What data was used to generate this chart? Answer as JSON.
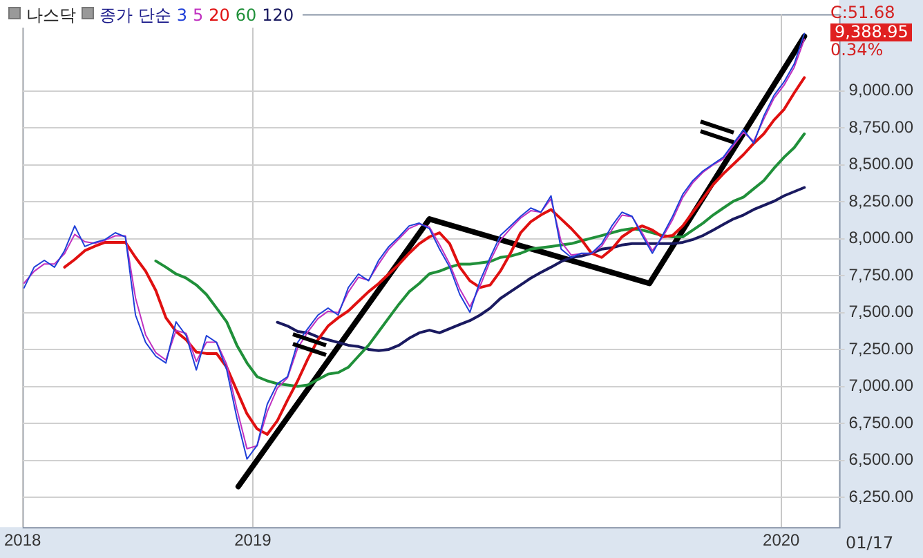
{
  "chart_data": {
    "type": "line",
    "title": "나스닥",
    "legend_title": "종가 단순",
    "x": [
      "2018-07-27",
      "2018-08-03",
      "2018-08-10",
      "2018-08-17",
      "2018-08-24",
      "2018-08-31",
      "2018-09-07",
      "2018-09-14",
      "2018-09-21",
      "2018-09-28",
      "2018-10-05",
      "2018-10-12",
      "2018-10-19",
      "2018-10-26",
      "2018-11-02",
      "2018-11-09",
      "2018-11-16",
      "2018-11-23",
      "2018-11-30",
      "2018-12-07",
      "2018-12-14",
      "2018-12-21",
      "2018-12-28",
      "2019-01-04",
      "2019-01-11",
      "2019-01-18",
      "2019-01-25",
      "2019-02-01",
      "2019-02-08",
      "2019-02-15",
      "2019-02-22",
      "2019-03-01",
      "2019-03-08",
      "2019-03-15",
      "2019-03-22",
      "2019-03-29",
      "2019-04-05",
      "2019-04-12",
      "2019-04-19",
      "2019-04-26",
      "2019-05-03",
      "2019-05-10",
      "2019-05-17",
      "2019-05-24",
      "2019-05-31",
      "2019-06-07",
      "2019-06-14",
      "2019-06-21",
      "2019-06-28",
      "2019-07-05",
      "2019-07-12",
      "2019-07-19",
      "2019-07-26",
      "2019-08-02",
      "2019-08-09",
      "2019-08-16",
      "2019-08-23",
      "2019-08-30",
      "2019-09-06",
      "2019-09-13",
      "2019-09-20",
      "2019-09-27",
      "2019-10-04",
      "2019-10-11",
      "2019-10-18",
      "2019-10-25",
      "2019-11-01",
      "2019-11-08",
      "2019-11-15",
      "2019-11-22",
      "2019-11-29",
      "2019-12-06",
      "2019-12-13",
      "2019-12-20",
      "2019-12-27",
      "2020-01-03",
      "2020-01-10",
      "2020-01-17"
    ],
    "series": [
      {
        "name": "3",
        "color": "#1f3fd8",
        "values": [
          7668,
          7808,
          7854,
          7808,
          7920,
          8087,
          7948,
          7976,
          7995,
          8041,
          8013,
          7484,
          7299,
          7206,
          7160,
          7438,
          7345,
          7113,
          7345,
          7299,
          7113,
          6789,
          6510,
          6603,
          6881,
          7020,
          7067,
          7299,
          7392,
          7484,
          7531,
          7484,
          7670,
          7762,
          7716,
          7855,
          7948,
          8013,
          8087,
          8106,
          8069,
          7930,
          7808,
          7623,
          7503,
          7716,
          7874,
          8022,
          8087,
          8152,
          8208,
          8180,
          8291,
          7930,
          7874,
          7902,
          7902,
          7967,
          8087,
          8180,
          8152,
          8022,
          7902,
          8022,
          8152,
          8301,
          8394,
          8459,
          8505,
          8552,
          8645,
          8738,
          8645,
          8831,
          8970,
          9062,
          9183,
          9389
        ]
      },
      {
        "name": "5",
        "color": "#c030c0",
        "values": [
          7700,
          7780,
          7830,
          7830,
          7900,
          8030,
          7980,
          7970,
          7990,
          8020,
          8020,
          7600,
          7350,
          7230,
          7180,
          7380,
          7360,
          7170,
          7300,
          7300,
          7150,
          6850,
          6580,
          6600,
          6830,
          6990,
          7060,
          7260,
          7370,
          7460,
          7510,
          7500,
          7640,
          7740,
          7720,
          7830,
          7930,
          8000,
          8070,
          8100,
          8080,
          7960,
          7830,
          7660,
          7540,
          7680,
          7850,
          7990,
          8070,
          8140,
          8190,
          8180,
          8270,
          7980,
          7890,
          7900,
          7900,
          7950,
          8060,
          8160,
          8150,
          8040,
          7920,
          8010,
          8130,
          8280,
          8380,
          8450,
          8500,
          8540,
          8630,
          8720,
          8660,
          8810,
          8950,
          9040,
          9160,
          9350
        ]
      },
      {
        "name": "20",
        "color": "#e01010",
        "values": [
          null,
          null,
          null,
          null,
          7808,
          7860,
          7920,
          7950,
          7976,
          7976,
          7976,
          7874,
          7781,
          7651,
          7466,
          7373,
          7317,
          7234,
          7224,
          7224,
          7131,
          6973,
          6816,
          6714,
          6677,
          6770,
          6909,
          7039,
          7187,
          7317,
          7410,
          7466,
          7512,
          7577,
          7642,
          7698,
          7763,
          7828,
          7902,
          7967,
          8013,
          8041,
          7967,
          7808,
          7716,
          7670,
          7688,
          7781,
          7902,
          8041,
          8115,
          8161,
          8198,
          8134,
          8069,
          7995,
          7902,
          7874,
          7930,
          8013,
          8059,
          8087,
          8059,
          8013,
          8022,
          8087,
          8180,
          8273,
          8366,
          8440,
          8505,
          8570,
          8645,
          8710,
          8803,
          8876,
          8987,
          9090
        ]
      },
      {
        "name": "60",
        "color": "#20903a",
        "values": [
          null,
          null,
          null,
          null,
          null,
          null,
          null,
          null,
          null,
          null,
          null,
          null,
          null,
          7850,
          7808,
          7762,
          7734,
          7688,
          7623,
          7531,
          7438,
          7280,
          7160,
          7067,
          7039,
          7020,
          7011,
          7002,
          7011,
          7048,
          7085,
          7095,
          7131,
          7206,
          7280,
          7373,
          7466,
          7558,
          7642,
          7698,
          7763,
          7781,
          7808,
          7828,
          7828,
          7837,
          7846,
          7874,
          7883,
          7902,
          7930,
          7939,
          7948,
          7958,
          7967,
          7986,
          8004,
          8022,
          8041,
          8059,
          8069,
          8059,
          8041,
          8022,
          8013,
          8013,
          8059,
          8106,
          8161,
          8208,
          8254,
          8282,
          8338,
          8394,
          8477,
          8552,
          8617,
          8710
        ]
      },
      {
        "name": "120",
        "color": "#1a1a60",
        "values": [
          null,
          null,
          null,
          null,
          null,
          null,
          null,
          null,
          null,
          null,
          null,
          null,
          null,
          null,
          null,
          null,
          null,
          null,
          null,
          null,
          null,
          null,
          null,
          null,
          null,
          7435,
          7410,
          7373,
          7364,
          7336,
          7317,
          7299,
          7280,
          7271,
          7252,
          7243,
          7252,
          7280,
          7327,
          7364,
          7382,
          7364,
          7392,
          7420,
          7447,
          7484,
          7531,
          7596,
          7642,
          7688,
          7734,
          7772,
          7808,
          7846,
          7874,
          7883,
          7902,
          7930,
          7939,
          7958,
          7967,
          7967,
          7967,
          7967,
          7967,
          7976,
          7995,
          8022,
          8059,
          8097,
          8134,
          8161,
          8198,
          8226,
          8254,
          8291,
          8319,
          8347
        ]
      },
      {
        "type": "line",
        "color": "#000000",
        "x": [
          "2018-12-22",
          "2019-05-03",
          "2019-10-02",
          "2020-01-17"
        ],
        "values": [
          6324,
          8134,
          7698,
          9370
        ]
      }
    ],
    "xlim": [
      "2018-07-26",
      "2020-02-10"
    ],
    "xticks": [
      {
        "value": "2018-07-26",
        "label": "2018"
      },
      {
        "value": "2019-01-01",
        "label": "2019"
      },
      {
        "value": "2020-01-01",
        "label": "2020"
      }
    ],
    "ylim": [
      6050,
      9520
    ],
    "yticks": [
      {
        "value": 6250,
        "label": "6,250.00"
      },
      {
        "value": 6500,
        "label": "6,500.00"
      },
      {
        "value": 6750,
        "label": "6,750.00"
      },
      {
        "value": 7000,
        "label": "7,000.00"
      },
      {
        "value": 7250,
        "label": "7,250.00"
      },
      {
        "value": 7500,
        "label": "7,500.00"
      },
      {
        "value": 7750,
        "label": "7,750.00"
      },
      {
        "value": 8000,
        "label": "8,000.00"
      },
      {
        "value": 8250,
        "label": "8,250.00"
      },
      {
        "value": 8500,
        "label": "8,500.00"
      },
      {
        "value": 8750,
        "label": "8,750.00"
      },
      {
        "value": 9000,
        "label": "9,000.00"
      }
    ],
    "annotations": [
      "C:51.68",
      "9,388.95",
      "0.34%",
      "01/17"
    ],
    "grid": true,
    "legend": "top left",
    "marker": "none"
  }
}
